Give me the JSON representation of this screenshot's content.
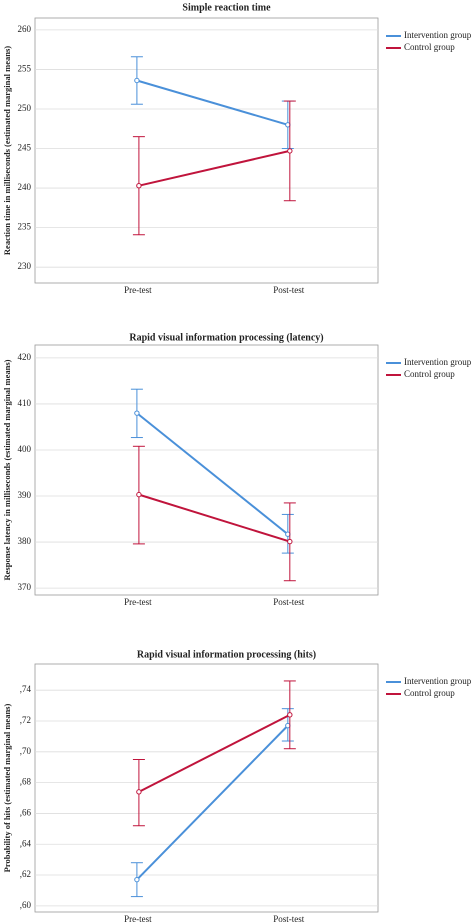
{
  "chart_data": [
    {
      "type": "line",
      "title": "Simple reaction time",
      "y_label": "Reaction time in milliseconds (estimated marginal means)",
      "categories": [
        "Pre-test",
        "Post-test"
      ],
      "ylim": [
        228,
        261.5
      ],
      "yticks": [
        230,
        235,
        240,
        245,
        250,
        255,
        260
      ],
      "grid": true,
      "legend": "right",
      "series": [
        {
          "name": "Intervention group",
          "color": "#4a90d9",
          "values": [
            253.6,
            248
          ],
          "lower": [
            250.6,
            245
          ],
          "upper": [
            256.6,
            251
          ]
        },
        {
          "name": "Control group",
          "color": "#c0143c",
          "values": [
            240.3,
            244.7
          ],
          "lower": [
            234.1,
            238.4
          ],
          "upper": [
            246.5,
            251
          ]
        }
      ]
    },
    {
      "type": "line",
      "title": "Rapid visual information processing (latency)",
      "y_label": "Response latency in milliseconds (estimated marginal means)",
      "categories": [
        "Pre-test",
        "Post-test"
      ],
      "ylim": [
        368.5,
        422.8
      ],
      "yticks": [
        370,
        380,
        390,
        400,
        410,
        420
      ],
      "grid": true,
      "legend": "right",
      "series": [
        {
          "name": "Intervention group",
          "color": "#4a90d9",
          "values": [
            408,
            381.7
          ],
          "lower": [
            402.7,
            377.6
          ],
          "upper": [
            413.2,
            386
          ]
        },
        {
          "name": "Control group",
          "color": "#c0143c",
          "values": [
            390.3,
            380.1
          ],
          "lower": [
            379.6,
            371.6
          ],
          "upper": [
            400.8,
            388.5
          ]
        }
      ]
    },
    {
      "type": "line",
      "title": "Rapid visual information processing (hits)",
      "y_label": "Probability of hits (estimated marginal means)",
      "categories": [
        "Pre-test",
        "Post-test"
      ],
      "ylim": [
        0.596,
        0.757
      ],
      "yticks": [
        {
          "value": 0.6,
          "label": ",60"
        },
        {
          "value": 0.62,
          "label": ",62"
        },
        {
          "value": 0.64,
          "label": ",64"
        },
        {
          "value": 0.66,
          "label": ",66"
        },
        {
          "value": 0.68,
          "label": ",68"
        },
        {
          "value": 0.7,
          "label": ",70"
        },
        {
          "value": 0.72,
          "label": ",72"
        },
        {
          "value": 0.74,
          "label": ",74"
        }
      ],
      "grid": true,
      "legend": "right",
      "series": [
        {
          "name": "Intervention group",
          "color": "#4a90d9",
          "values": [
            0.617,
            0.717
          ],
          "lower": [
            0.606,
            0.707
          ],
          "upper": [
            0.628,
            0.728
          ]
        },
        {
          "name": "Control group",
          "color": "#c0143c",
          "values": [
            0.674,
            0.724
          ],
          "lower": [
            0.652,
            0.702
          ],
          "upper": [
            0.695,
            0.746
          ]
        }
      ]
    }
  ]
}
